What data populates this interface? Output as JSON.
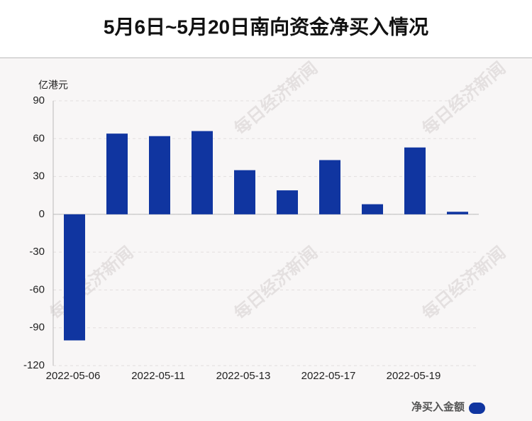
{
  "chart_data": {
    "type": "bar",
    "title": "5月6日~5月20日南向资金净买入情况",
    "y_unit": "亿港元",
    "watermark": "每日经济新闻",
    "categories": [
      "2022-05-06",
      null,
      "2022-05-11",
      null,
      "2022-05-13",
      null,
      "2022-05-17",
      null,
      "2022-05-19",
      null
    ],
    "series": [
      {
        "name": "净买入金额",
        "color": "#1035a0",
        "values": [
          -100,
          64,
          62,
          66,
          35,
          19,
          43,
          8,
          53,
          2
        ]
      }
    ],
    "ylim": [
      -120,
      90
    ],
    "yticks": [
      -120,
      -90,
      -60,
      -30,
      0,
      30,
      60,
      90
    ],
    "grid": true,
    "legend": "bottom-right"
  }
}
